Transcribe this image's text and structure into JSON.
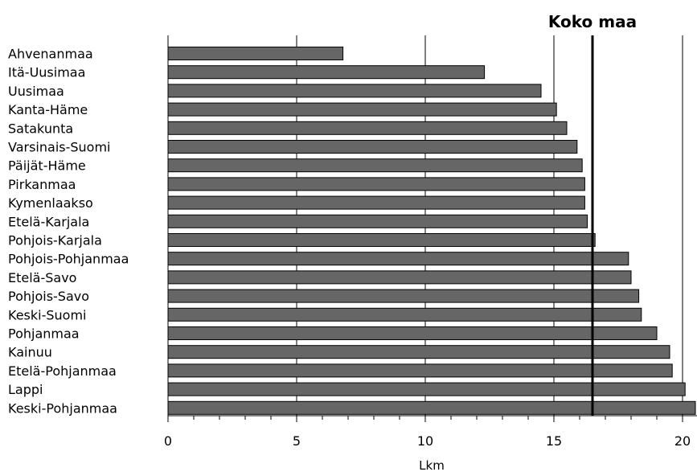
{
  "chart_data": {
    "type": "bar",
    "orientation": "horizontal",
    "categories": [
      "Ahvenanmaa",
      "Itä-Uusimaa",
      "Uusimaa",
      "Kanta-Häme",
      "Satakunta",
      "Varsinais-Suomi",
      "Päijät-Häme",
      "Pirkanmaa",
      "Kymenlaakso",
      "Etelä-Karjala",
      "Pohjois-Karjala",
      "Pohjois-Pohjanmaa",
      "Etelä-Savo",
      "Pohjois-Savo",
      "Keski-Suomi",
      "Pohjanmaa",
      "Kainuu",
      "Etelä-Pohjanmaa",
      "Lappi",
      "Keski-Pohjanmaa"
    ],
    "values": [
      6.8,
      12.3,
      14.5,
      15.1,
      15.5,
      15.9,
      16.1,
      16.2,
      16.2,
      16.3,
      16.6,
      17.9,
      18.0,
      18.3,
      18.4,
      19.0,
      19.5,
      19.6,
      20.1,
      20.5
    ],
    "xlabel": "Lkm",
    "xlim": [
      0,
      20.5
    ],
    "xticks": [
      0,
      5,
      10,
      15,
      20
    ],
    "xtick_labels": [
      "0",
      "5",
      "10",
      "15",
      "20"
    ],
    "grid": true,
    "bar_color": "#666666",
    "reference_line": {
      "label": "Koko maa",
      "value": 16.5
    }
  }
}
